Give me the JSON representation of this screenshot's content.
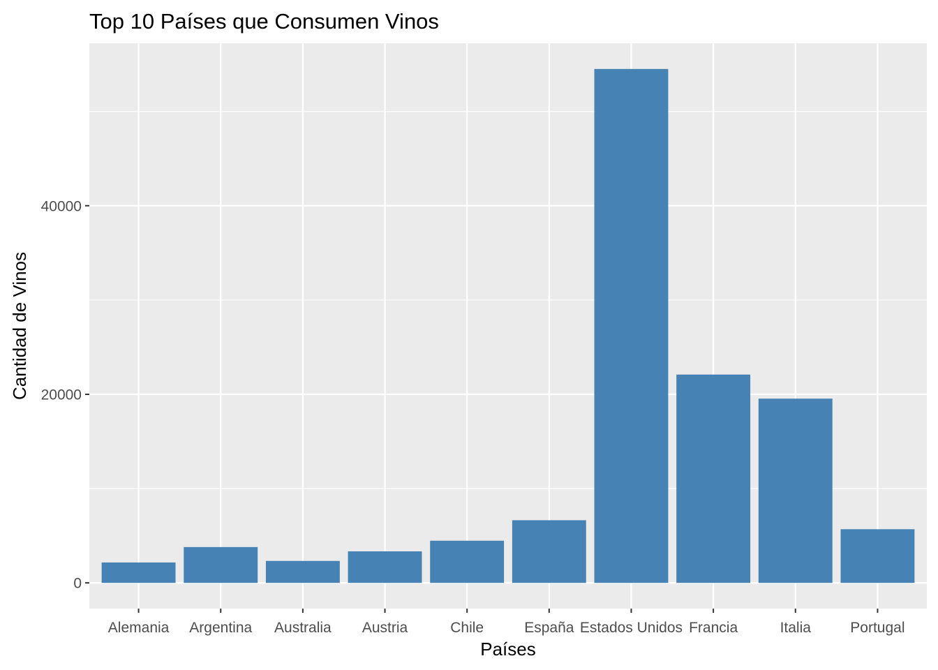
{
  "chart_data": {
    "type": "bar",
    "title": "Top 10 Países que Consumen Vinos",
    "xlabel": "Países",
    "ylabel": "Cantidad de Vinos",
    "categories": [
      "Alemania",
      "Argentina",
      "Australia",
      "Austria",
      "Chile",
      "España",
      "Estados Unidos",
      "Francia",
      "Italia",
      "Portugal"
    ],
    "values": [
      2165,
      3800,
      2329,
      3345,
      4472,
      6645,
      54504,
      22093,
      19540,
      5691
    ],
    "ylim": [
      -2725,
      57229
    ],
    "yticks": [
      0,
      20000,
      40000
    ],
    "yticks_labels": [
      "0",
      "20000",
      "40000"
    ],
    "grid": true,
    "legend": "none",
    "colors": {
      "bar": "#4682b4",
      "panel": "#ebebeb",
      "grid_major": "#ffffff",
      "tick": "#333333"
    }
  }
}
